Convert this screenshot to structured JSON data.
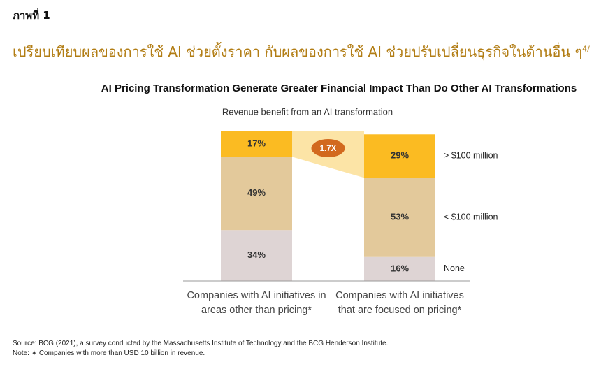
{
  "header": {
    "figure_label": "ภาพที่ 1",
    "title": "เปรียบเทียบผลของการใช้ AI ช่วยตั้งราคา กับผลของการใช้ AI ช่วยปรับเปลี่ยนธุรกิจในด้านอื่น ๆ",
    "title_note": "4/"
  },
  "chart_data": {
    "type": "stacked_bar",
    "title": "AI Pricing Transformation Generate Greater Financial Impact Than Do Other AI Transformations",
    "subtitle": "Revenue benefit from an AI transformation",
    "categories": [
      "Companies with AI initiatives in areas other than pricing*",
      "Companies with AI initiatives that are focused on pricing*"
    ],
    "series": [
      {
        "name": "None",
        "color": "#ded4d4",
        "values": [
          34,
          16
        ],
        "value_labels": [
          "34%",
          "16%"
        ]
      },
      {
        "name": "< $100 million",
        "color": "#e3c99b",
        "values": [
          49,
          53
        ],
        "value_labels": [
          "49%",
          "53%"
        ]
      },
      {
        "name": "> $100 million",
        "color": "#fbbb22",
        "values": [
          17,
          29
        ],
        "value_labels": [
          "17%",
          "29%"
        ]
      }
    ],
    "ylim": [
      0,
      100
    ],
    "annotation": "1.7X"
  },
  "footer": {
    "source": "Source: BCG (2021), a survey conducted by the Massachusetts Institute of Technology and the BCG Henderson Institute.",
    "note": "Note: ∗ Companies with more than USD 10 billion in revenue."
  }
}
